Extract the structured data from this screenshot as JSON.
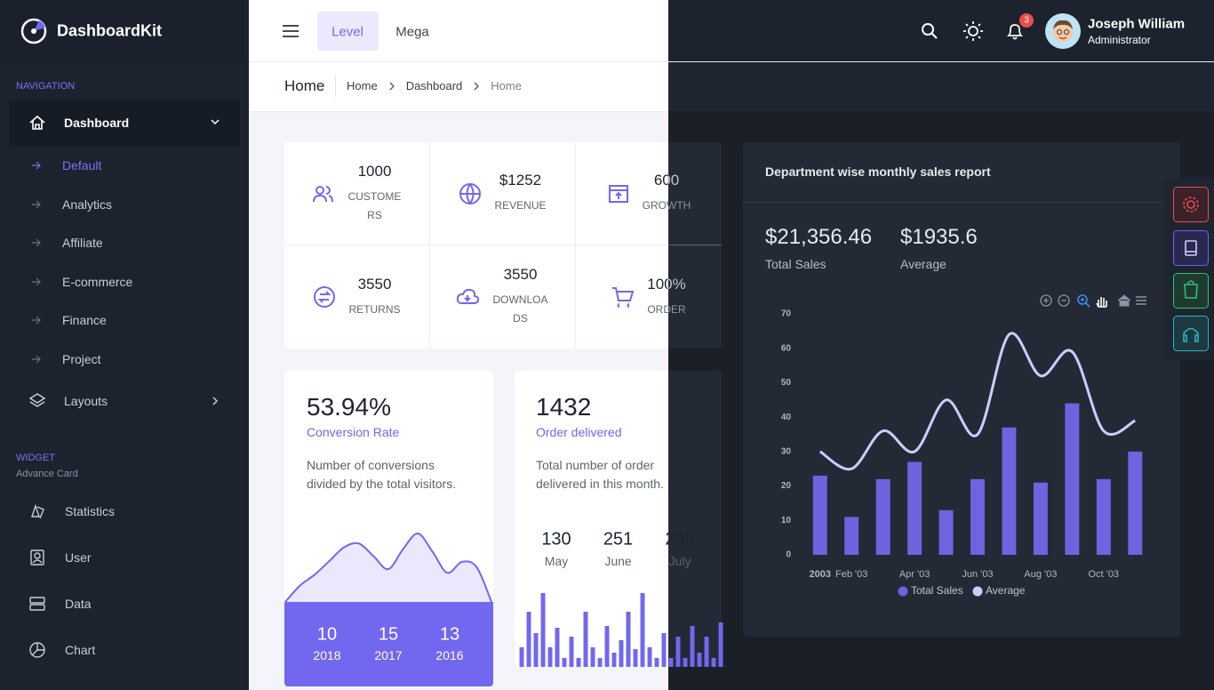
{
  "brand": "DashboardKit",
  "header": {
    "menu": [
      "Level",
      "Mega"
    ],
    "notifications": "3",
    "user": {
      "name": "Joseph William",
      "role": "Administrator"
    }
  },
  "breadcrumb": {
    "title": "Home",
    "items": [
      "Home",
      "Dashboard",
      "Home"
    ]
  },
  "sidebar": {
    "sections": [
      {
        "title": "NAVIGATION",
        "items": [
          {
            "label": "Dashboard",
            "children": [
              "Default",
              "Analytics",
              "Affiliate",
              "E-commerce",
              "Finance",
              "Project"
            ]
          },
          {
            "label": "Layouts"
          }
        ]
      },
      {
        "title": "WIDGET",
        "subtitle": "Advance Card",
        "items": [
          {
            "label": "Statistics"
          },
          {
            "label": "User"
          },
          {
            "label": "Data"
          },
          {
            "label": "Chart"
          }
        ]
      }
    ]
  },
  "stats": [
    {
      "value": "1000",
      "label": "CUSTOMERS"
    },
    {
      "value": "$1252",
      "label": "REVENUE"
    },
    {
      "value": "600",
      "label": "GROWTH"
    },
    {
      "value": "3550",
      "label": "RETURNS"
    },
    {
      "value": "3550",
      "label": "DOWNLOADS"
    },
    {
      "value": "100%",
      "label": "ORDER"
    }
  ],
  "conversion": {
    "value": "53.94%",
    "title": "Conversion Rate",
    "text": "Number of conversions divided by the total visitors.",
    "footer": [
      {
        "value": "10",
        "label": "2018"
      },
      {
        "value": "15",
        "label": "2017"
      },
      {
        "value": "13",
        "label": "2016"
      }
    ]
  },
  "orders": {
    "value": "1432",
    "title": "Order delivered",
    "text": "Total number of order delivered in this month.",
    "stats": [
      {
        "value": "130",
        "label": "May"
      },
      {
        "value": "251",
        "label": "June"
      },
      {
        "value": "235",
        "label": "July"
      }
    ]
  },
  "sales_summary": [
    {
      "value": "$21,356.46",
      "label": "Total Sales"
    },
    {
      "value": "$1935.6",
      "label": "Average"
    }
  ],
  "chart_data": [
    {
      "type": "bar",
      "title": "Department wise monthly sales report",
      "categories": [
        "2003",
        "Feb '03",
        null,
        "Apr '03",
        null,
        "Jun '03",
        null,
        "Aug '03",
        null,
        "Oct '03",
        null
      ],
      "series": [
        {
          "name": "Total Sales",
          "color": "#6f63e0",
          "values": [
            23,
            11,
            22,
            27,
            13,
            22,
            37,
            21,
            44,
            22,
            30
          ]
        },
        {
          "name": "Average",
          "type": "line",
          "color": "#c9cffb",
          "values": [
            30,
            25,
            36,
            30,
            45,
            35,
            64,
            52,
            59,
            36,
            39
          ]
        }
      ],
      "ylim": [
        0,
        70
      ],
      "yticks": [
        0,
        10,
        20,
        30,
        40,
        50,
        60,
        70
      ],
      "legend": "bottom"
    },
    {
      "type": "area",
      "color": "#7267ef",
      "values": [
        0,
        18,
        30,
        45,
        60,
        64,
        50,
        36,
        58,
        75,
        55,
        32,
        44,
        38,
        0
      ]
    },
    {
      "type": "bar",
      "color": "#7267ef",
      "values": [
        22,
        62,
        38,
        83,
        22,
        44,
        10,
        34,
        10,
        62,
        22,
        10,
        46,
        16,
        30,
        62,
        20,
        83,
        22,
        10,
        38,
        10,
        34,
        10,
        46,
        16,
        34,
        10,
        50
      ]
    }
  ]
}
